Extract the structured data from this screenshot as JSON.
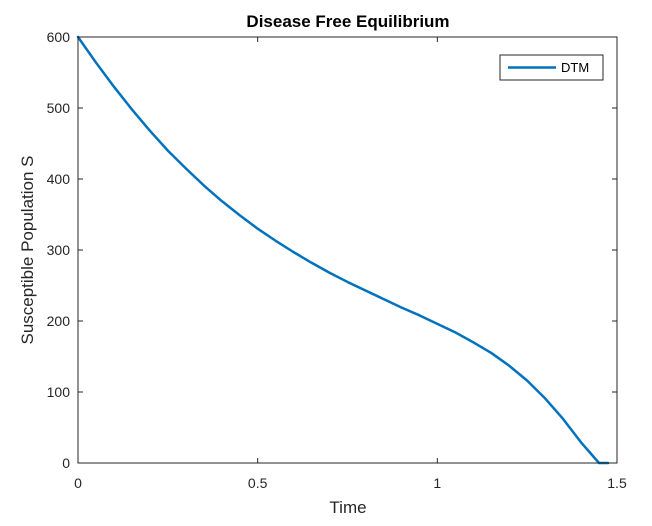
{
  "chart_data": {
    "type": "line",
    "title": "Disease Free Equilibrium",
    "xlabel": "Time",
    "ylabel": "Susceptible Population S",
    "xlim": [
      0,
      1.5
    ],
    "ylim": [
      0,
      600
    ],
    "xticks": [
      0,
      0.5,
      1,
      1.5
    ],
    "xtick_labels": [
      "0",
      "0.5",
      "1",
      "1.5"
    ],
    "yticks": [
      0,
      100,
      200,
      300,
      400,
      500,
      600
    ],
    "ytick_labels": [
      "0",
      "100",
      "200",
      "300",
      "400",
      "500",
      "600"
    ],
    "grid": false,
    "legend_position": "top-right",
    "series": [
      {
        "name": "DTM",
        "color": "#0072BD",
        "x": [
          0,
          0.05,
          0.1,
          0.15,
          0.2,
          0.25,
          0.3,
          0.35,
          0.4,
          0.45,
          0.5,
          0.55,
          0.6,
          0.65,
          0.7,
          0.75,
          0.8,
          0.85,
          0.9,
          0.95,
          1.0,
          1.05,
          1.1,
          1.15,
          1.2,
          1.25,
          1.3,
          1.35,
          1.4,
          1.45,
          1.475
        ],
        "y": [
          600,
          564,
          530,
          498,
          468,
          440,
          415,
          391,
          369,
          349,
          330,
          313,
          297,
          282,
          268,
          255,
          243,
          231,
          219,
          208,
          196,
          184,
          170,
          155,
          137,
          116,
          91,
          62,
          29,
          0,
          0
        ]
      }
    ]
  }
}
